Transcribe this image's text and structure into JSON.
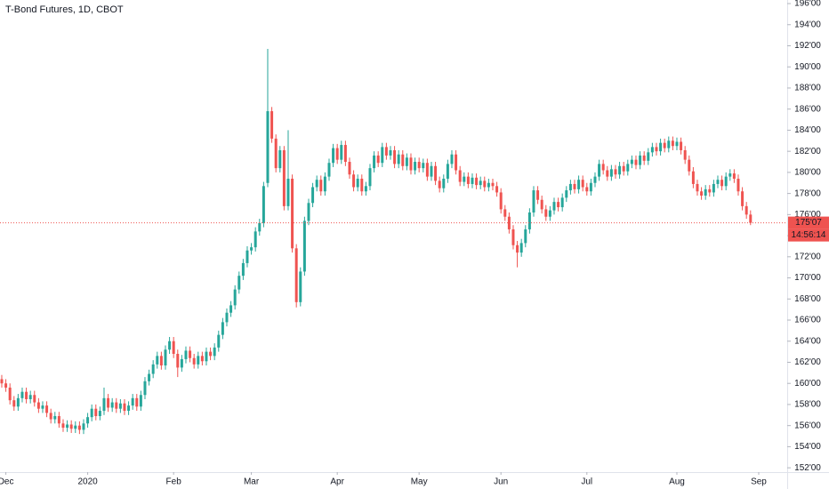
{
  "chart_data": {
    "type": "candlestick",
    "title": "T-Bond Futures, 1D, CBOT",
    "up_color": "#26a69a",
    "down_color": "#ef5350",
    "grid": false,
    "ylim": [
      151,
      196.34
    ],
    "xlim": [
      -0.43,
      191.96
    ],
    "yticks": [
      {
        "value": 152,
        "label": "152'00"
      },
      {
        "value": 154,
        "label": "154'00"
      },
      {
        "value": 156,
        "label": "156'00"
      },
      {
        "value": 158,
        "label": "158'00"
      },
      {
        "value": 160,
        "label": "160'00"
      },
      {
        "value": 162,
        "label": "162'00"
      },
      {
        "value": 164,
        "label": "164'00"
      },
      {
        "value": 166,
        "label": "166'00"
      },
      {
        "value": 168,
        "label": "168'00"
      },
      {
        "value": 170,
        "label": "170'00"
      },
      {
        "value": 172,
        "label": "172'00"
      },
      {
        "value": 174,
        "label": "174'00"
      },
      {
        "value": 176,
        "label": "176'00"
      },
      {
        "value": 178,
        "label": "178'00"
      },
      {
        "value": 180,
        "label": "180'00"
      },
      {
        "value": 182,
        "label": "182'00"
      },
      {
        "value": 184,
        "label": "184'00"
      },
      {
        "value": 186,
        "label": "186'00"
      },
      {
        "value": 188,
        "label": "188'00"
      },
      {
        "value": 190,
        "label": "190'00"
      },
      {
        "value": 192,
        "label": "192'00"
      },
      {
        "value": 194,
        "label": "194'00"
      },
      {
        "value": 196,
        "label": "196'00"
      }
    ],
    "xticks": [
      {
        "value": 1,
        "label": "Dec"
      },
      {
        "value": 21,
        "label": "2020"
      },
      {
        "value": 42,
        "label": "Feb"
      },
      {
        "value": 61,
        "label": "Mar"
      },
      {
        "value": 82,
        "label": "Apr"
      },
      {
        "value": 102,
        "label": "May"
      },
      {
        "value": 122,
        "label": "Jun"
      },
      {
        "value": 143,
        "label": "Jul"
      },
      {
        "value": 165,
        "label": "Aug"
      },
      {
        "value": 185,
        "label": "Sep"
      }
    ],
    "last_price": {
      "value": 175.22,
      "label": "175'07"
    },
    "countdown": "14:56:14",
    "open": [
      160.4,
      160.0,
      159.6,
      158.4,
      157.8,
      158.6,
      159.2,
      158.5,
      158.9,
      158.2,
      157.6,
      157.9,
      157.2,
      156.6,
      156.9,
      156.2,
      155.8,
      156.1,
      155.7,
      156.0,
      155.6,
      156.2,
      156.8,
      157.6,
      156.9,
      157.4,
      158.6,
      157.7,
      158.2,
      157.6,
      158.1,
      157.4,
      157.9,
      158.6,
      157.8,
      158.9,
      160.2,
      160.9,
      161.8,
      162.6,
      161.7,
      163.2,
      164.0,
      162.8,
      161.5,
      162.3,
      163.1,
      162.4,
      161.8,
      162.6,
      162.1,
      163.0,
      162.6,
      163.4,
      164.6,
      165.8,
      166.7,
      167.4,
      168.9,
      170.2,
      171.4,
      172.6,
      172.9,
      174.4,
      175.2,
      179.0,
      185.8,
      183.2,
      180.4,
      182.1,
      176.8,
      179.4,
      172.8,
      167.7,
      170.6,
      175.4,
      177.1,
      178.6,
      179.3,
      178.2,
      179.6,
      180.9,
      182.3,
      181.2,
      182.6,
      181.0,
      179.8,
      178.6,
      179.4,
      178.2,
      178.7,
      180.4,
      181.6,
      180.9,
      182.4,
      181.6,
      182.1,
      180.8,
      181.7,
      180.6,
      181.4,
      180.2,
      181.0,
      180.4,
      180.9,
      179.6,
      180.6,
      179.2,
      178.5,
      179.4,
      180.8,
      181.7,
      180.2,
      179.1,
      179.6,
      178.9,
      179.5,
      178.8,
      179.2,
      178.6,
      179.0,
      178.7,
      178.1,
      176.5,
      175.8,
      174.6,
      173.1,
      172.4,
      173.3,
      174.6,
      176.2,
      178.3,
      177.4,
      176.5,
      175.8,
      176.4,
      177.2,
      176.7,
      177.6,
      178.3,
      178.9,
      178.4,
      179.3,
      178.6,
      178.2,
      179.0,
      179.6,
      180.8,
      180.2,
      179.6,
      180.3,
      179.8,
      180.6,
      180.1,
      180.8,
      181.2,
      180.7,
      181.6,
      181.1,
      181.9,
      182.4,
      182.0,
      182.8,
      182.3,
      183.0,
      182.5,
      182.9,
      182.1,
      181.2,
      180.1,
      178.9,
      178.2,
      177.8,
      178.4,
      178.1,
      178.9,
      179.3,
      178.7,
      179.6,
      179.9,
      179.4,
      178.2,
      176.8,
      176.0
    ],
    "high": [
      160.8,
      160.4,
      160.0,
      158.8,
      159.0,
      159.6,
      159.6,
      159.3,
      159.3,
      158.6,
      158.3,
      158.3,
      157.6,
      157.3,
      157.3,
      156.6,
      156.5,
      156.5,
      156.4,
      156.4,
      156.6,
      157.2,
      158.0,
      158.0,
      157.8,
      159.6,
      159.0,
      158.6,
      158.6,
      158.5,
      158.5,
      158.3,
      159.0,
      159.0,
      159.3,
      160.6,
      161.3,
      162.2,
      163.0,
      163.0,
      163.6,
      164.4,
      164.4,
      163.2,
      162.7,
      163.5,
      163.5,
      162.8,
      163.0,
      163.0,
      163.4,
      163.4,
      163.8,
      165.0,
      166.2,
      167.1,
      167.8,
      169.3,
      170.6,
      171.8,
      173.0,
      173.3,
      174.8,
      175.6,
      179.1,
      191.7,
      186.2,
      183.6,
      182.5,
      182.5,
      184.0,
      179.8,
      173.2,
      171.0,
      175.8,
      177.5,
      179.0,
      179.7,
      179.7,
      180.0,
      181.3,
      182.7,
      182.7,
      183.0,
      183.0,
      181.4,
      180.2,
      179.8,
      179.8,
      179.1,
      180.8,
      182.0,
      182.0,
      182.8,
      182.8,
      182.5,
      182.5,
      182.1,
      182.1,
      181.8,
      181.8,
      181.4,
      181.4,
      181.3,
      181.3,
      181.0,
      181.0,
      179.6,
      179.8,
      181.2,
      182.1,
      182.1,
      180.6,
      180.0,
      180.0,
      179.9,
      179.9,
      179.6,
      179.6,
      179.4,
      179.4,
      179.1,
      178.5,
      176.9,
      176.2,
      175.0,
      173.5,
      173.7,
      175.0,
      176.6,
      178.7,
      178.7,
      177.8,
      176.9,
      176.8,
      177.6,
      177.6,
      178.0,
      178.7,
      179.3,
      179.3,
      179.7,
      179.7,
      179.0,
      179.4,
      180.0,
      181.2,
      181.2,
      180.6,
      180.7,
      180.7,
      181.0,
      181.0,
      181.2,
      181.6,
      181.6,
      182.0,
      182.0,
      182.3,
      182.8,
      182.8,
      183.2,
      183.2,
      183.4,
      183.4,
      183.3,
      183.3,
      182.5,
      181.6,
      180.5,
      179.3,
      178.6,
      178.8,
      178.8,
      179.3,
      179.7,
      179.7,
      180.0,
      180.3,
      180.3,
      179.8,
      178.6,
      177.2,
      176.4
    ],
    "low": [
      159.6,
      159.2,
      158.0,
      157.4,
      157.4,
      158.2,
      158.1,
      158.1,
      157.8,
      157.2,
      157.2,
      156.8,
      156.2,
      156.2,
      155.8,
      155.4,
      155.4,
      155.3,
      155.3,
      155.2,
      155.2,
      155.8,
      156.4,
      156.5,
      156.5,
      157.0,
      157.3,
      157.3,
      157.2,
      157.2,
      157.0,
      157.0,
      157.5,
      157.4,
      157.4,
      158.5,
      159.8,
      160.5,
      161.4,
      161.3,
      161.3,
      162.8,
      162.4,
      160.6,
      161.1,
      161.9,
      162.0,
      161.4,
      161.4,
      161.7,
      161.7,
      162.2,
      162.2,
      163.0,
      164.2,
      165.4,
      166.3,
      167.0,
      168.5,
      169.8,
      171.0,
      172.2,
      172.5,
      174.0,
      174.8,
      178.6,
      182.8,
      180.0,
      180.0,
      176.4,
      176.4,
      172.4,
      167.2,
      167.3,
      170.2,
      175.0,
      176.7,
      178.2,
      177.8,
      177.8,
      179.2,
      180.5,
      180.8,
      180.8,
      180.6,
      179.4,
      178.2,
      178.2,
      177.8,
      177.8,
      178.3,
      180.0,
      180.5,
      180.5,
      181.2,
      181.2,
      180.4,
      180.4,
      180.2,
      180.2,
      179.8,
      179.8,
      180.0,
      180.0,
      179.2,
      179.2,
      178.8,
      178.1,
      178.1,
      179.0,
      180.4,
      179.8,
      178.7,
      178.7,
      178.5,
      178.5,
      178.4,
      178.4,
      178.2,
      178.2,
      178.3,
      177.7,
      176.1,
      175.4,
      174.2,
      172.7,
      171.0,
      172.0,
      172.9,
      174.2,
      175.8,
      177.0,
      176.1,
      175.4,
      175.4,
      176.0,
      176.3,
      176.3,
      177.2,
      177.9,
      178.0,
      178.0,
      178.2,
      177.8,
      177.8,
      178.6,
      179.2,
      179.8,
      179.2,
      179.2,
      179.4,
      179.4,
      179.7,
      179.7,
      180.4,
      180.3,
      180.3,
      180.7,
      180.7,
      181.5,
      181.6,
      181.6,
      181.9,
      181.9,
      182.1,
      182.1,
      181.7,
      180.8,
      179.7,
      178.5,
      177.8,
      177.4,
      177.4,
      177.7,
      177.7,
      178.5,
      178.3,
      178.3,
      179.2,
      179.0,
      177.8,
      176.4,
      175.6,
      175.0
    ],
    "close": [
      160.0,
      159.6,
      158.4,
      157.8,
      158.6,
      159.2,
      158.5,
      158.9,
      158.2,
      157.6,
      157.9,
      157.2,
      156.6,
      156.9,
      156.2,
      155.8,
      156.1,
      155.7,
      156.0,
      155.6,
      156.2,
      156.8,
      157.6,
      156.9,
      157.4,
      158.6,
      157.7,
      158.2,
      157.6,
      158.1,
      157.4,
      157.9,
      158.6,
      157.8,
      158.9,
      160.2,
      160.9,
      161.8,
      162.6,
      161.7,
      163.2,
      164.0,
      162.8,
      161.5,
      162.3,
      163.1,
      162.4,
      161.8,
      162.6,
      162.1,
      163.0,
      162.6,
      163.4,
      164.6,
      165.8,
      166.7,
      167.4,
      168.9,
      170.2,
      171.4,
      172.6,
      172.9,
      174.4,
      175.2,
      178.7,
      185.8,
      183.2,
      180.4,
      182.1,
      176.8,
      179.4,
      172.8,
      167.7,
      170.6,
      175.4,
      177.1,
      178.6,
      179.3,
      178.2,
      179.6,
      180.9,
      182.3,
      181.2,
      182.6,
      181.0,
      179.8,
      178.6,
      179.4,
      178.2,
      178.7,
      180.4,
      181.6,
      180.9,
      182.4,
      181.6,
      182.1,
      180.8,
      181.7,
      180.6,
      181.4,
      180.2,
      181.0,
      180.4,
      180.9,
      179.6,
      180.6,
      179.2,
      178.5,
      179.4,
      180.8,
      181.7,
      180.2,
      179.1,
      179.6,
      178.9,
      179.5,
      178.8,
      179.2,
      178.6,
      179.0,
      178.7,
      178.1,
      176.5,
      175.8,
      174.6,
      173.1,
      172.4,
      173.3,
      174.6,
      176.2,
      178.3,
      177.4,
      176.5,
      175.8,
      176.4,
      177.2,
      176.7,
      177.6,
      178.3,
      178.9,
      178.4,
      179.3,
      178.6,
      178.2,
      179.0,
      179.6,
      180.8,
      180.2,
      179.6,
      180.3,
      179.8,
      180.6,
      180.1,
      180.8,
      181.2,
      180.7,
      181.6,
      181.1,
      181.9,
      182.4,
      182.0,
      182.8,
      182.3,
      183.0,
      182.5,
      182.9,
      182.1,
      181.2,
      180.1,
      178.9,
      178.2,
      177.8,
      178.4,
      178.1,
      178.9,
      179.3,
      178.7,
      179.6,
      179.9,
      179.4,
      178.2,
      176.8,
      176.0,
      175.22
    ]
  }
}
